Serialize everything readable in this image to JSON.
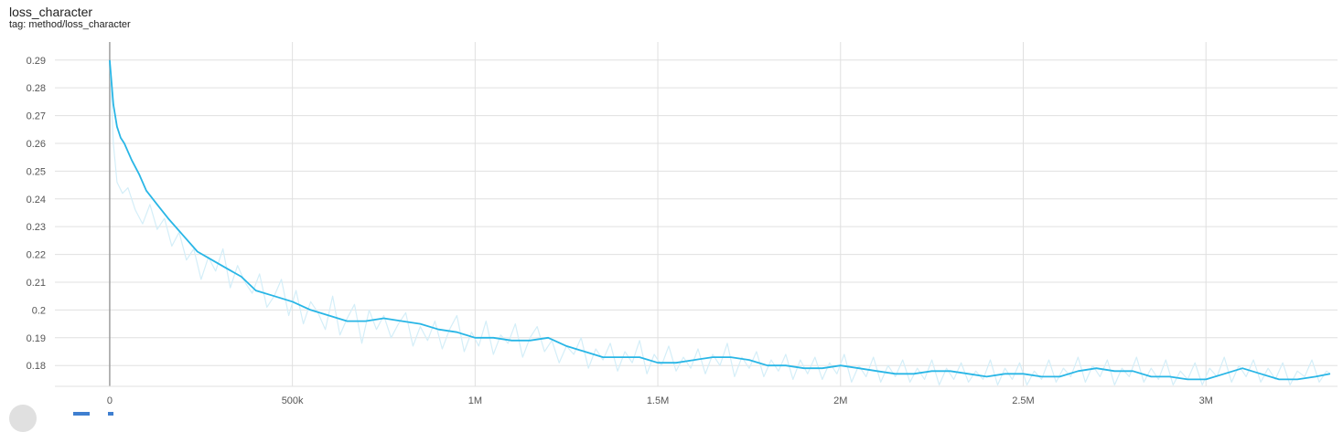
{
  "header": {
    "title": "loss_character",
    "tag": "tag: method/loss_character"
  },
  "colors": {
    "smoothed": "#29b6e6",
    "raw": "#d4eef8",
    "grid": "#e0e0e0",
    "axis": "#9e9e9e"
  },
  "chart_data": {
    "type": "line",
    "title": "loss_character",
    "xlabel": "",
    "ylabel": "",
    "xlim": [
      -150000,
      3360000
    ],
    "ylim": [
      0.1725,
      0.2965
    ],
    "x_ticks": [
      0,
      500000,
      1000000,
      1500000,
      2000000,
      2500000,
      3000000
    ],
    "x_tick_labels": [
      "0",
      "500k",
      "1M",
      "1.5M",
      "2M",
      "2.5M",
      "3M"
    ],
    "y_ticks": [
      0.18,
      0.19,
      0.2,
      0.21,
      0.22,
      0.23,
      0.24,
      0.25,
      0.26,
      0.27,
      0.28,
      0.29
    ],
    "y_tick_labels": [
      "0.18",
      "0.19",
      "0.2",
      "0.21",
      "0.22",
      "0.23",
      "0.24",
      "0.25",
      "0.26",
      "0.27",
      "0.28",
      "0.29"
    ],
    "grid": true,
    "series": [
      {
        "style": "smoothed",
        "x": [
          0,
          10000,
          20000,
          30000,
          40000,
          60000,
          80000,
          100000,
          130000,
          160000,
          200000,
          240000,
          280000,
          320000,
          360000,
          400000,
          450000,
          500000,
          550000,
          600000,
          650000,
          700000,
          750000,
          800000,
          850000,
          900000,
          950000,
          1000000,
          1050000,
          1100000,
          1150000,
          1200000,
          1250000,
          1300000,
          1350000,
          1400000,
          1450000,
          1500000,
          1550000,
          1600000,
          1650000,
          1700000,
          1750000,
          1800000,
          1850000,
          1900000,
          1950000,
          2000000,
          2050000,
          2100000,
          2150000,
          2200000,
          2250000,
          2300000,
          2350000,
          2400000,
          2450000,
          2500000,
          2550000,
          2600000,
          2650000,
          2700000,
          2750000,
          2800000,
          2850000,
          2900000,
          2950000,
          3000000,
          3050000,
          3100000,
          3150000,
          3200000,
          3250000,
          3300000,
          3340000
        ],
        "y": [
          0.29,
          0.274,
          0.266,
          0.262,
          0.26,
          0.254,
          0.249,
          0.243,
          0.238,
          0.233,
          0.227,
          0.221,
          0.218,
          0.215,
          0.212,
          0.207,
          0.205,
          0.203,
          0.2,
          0.198,
          0.196,
          0.196,
          0.197,
          0.196,
          0.195,
          0.193,
          0.192,
          0.19,
          0.19,
          0.189,
          0.189,
          0.19,
          0.187,
          0.185,
          0.183,
          0.183,
          0.183,
          0.181,
          0.181,
          0.182,
          0.183,
          0.183,
          0.182,
          0.18,
          0.18,
          0.179,
          0.179,
          0.18,
          0.179,
          0.178,
          0.177,
          0.177,
          0.178,
          0.178,
          0.177,
          0.176,
          0.177,
          0.177,
          0.176,
          0.176,
          0.178,
          0.179,
          0.178,
          0.178,
          0.176,
          0.176,
          0.175,
          0.175,
          0.177,
          0.179,
          0.177,
          0.175,
          0.175,
          0.176,
          0.177
        ]
      },
      {
        "style": "raw",
        "x": [
          0,
          10000,
          20000,
          35000,
          50000,
          70000,
          90000,
          110000,
          130000,
          150000,
          170000,
          190000,
          210000,
          230000,
          250000,
          270000,
          290000,
          310000,
          330000,
          350000,
          370000,
          390000,
          410000,
          430000,
          450000,
          470000,
          490000,
          510000,
          530000,
          550000,
          570000,
          590000,
          610000,
          630000,
          650000,
          670000,
          690000,
          710000,
          730000,
          750000,
          770000,
          790000,
          810000,
          830000,
          850000,
          870000,
          890000,
          910000,
          930000,
          950000,
          970000,
          990000,
          1010000,
          1030000,
          1050000,
          1070000,
          1090000,
          1110000,
          1130000,
          1150000,
          1170000,
          1190000,
          1210000,
          1230000,
          1250000,
          1270000,
          1290000,
          1310000,
          1330000,
          1350000,
          1370000,
          1390000,
          1410000,
          1430000,
          1450000,
          1470000,
          1490000,
          1510000,
          1530000,
          1550000,
          1570000,
          1590000,
          1610000,
          1630000,
          1650000,
          1670000,
          1690000,
          1710000,
          1730000,
          1750000,
          1770000,
          1790000,
          1810000,
          1830000,
          1850000,
          1870000,
          1890000,
          1910000,
          1930000,
          1950000,
          1970000,
          1990000,
          2010000,
          2030000,
          2050000,
          2070000,
          2090000,
          2110000,
          2130000,
          2150000,
          2170000,
          2190000,
          2210000,
          2230000,
          2250000,
          2270000,
          2290000,
          2310000,
          2330000,
          2350000,
          2370000,
          2390000,
          2410000,
          2430000,
          2450000,
          2470000,
          2490000,
          2510000,
          2530000,
          2550000,
          2570000,
          2590000,
          2610000,
          2630000,
          2650000,
          2670000,
          2690000,
          2710000,
          2730000,
          2750000,
          2770000,
          2790000,
          2810000,
          2830000,
          2850000,
          2870000,
          2890000,
          2910000,
          2930000,
          2950000,
          2970000,
          2990000,
          3010000,
          3030000,
          3050000,
          3070000,
          3090000,
          3110000,
          3130000,
          3150000,
          3170000,
          3190000,
          3210000,
          3230000,
          3250000,
          3270000,
          3290000,
          3310000,
          3330000,
          3340000
        ],
        "y": [
          0.29,
          0.26,
          0.246,
          0.242,
          0.244,
          0.236,
          0.231,
          0.238,
          0.229,
          0.233,
          0.223,
          0.228,
          0.218,
          0.222,
          0.211,
          0.219,
          0.214,
          0.222,
          0.208,
          0.216,
          0.21,
          0.206,
          0.213,
          0.201,
          0.205,
          0.211,
          0.198,
          0.207,
          0.195,
          0.203,
          0.199,
          0.193,
          0.205,
          0.191,
          0.197,
          0.202,
          0.188,
          0.2,
          0.193,
          0.198,
          0.19,
          0.195,
          0.199,
          0.187,
          0.194,
          0.189,
          0.196,
          0.186,
          0.193,
          0.198,
          0.185,
          0.192,
          0.187,
          0.196,
          0.184,
          0.191,
          0.188,
          0.195,
          0.183,
          0.19,
          0.194,
          0.185,
          0.189,
          0.181,
          0.187,
          0.184,
          0.19,
          0.179,
          0.186,
          0.182,
          0.188,
          0.178,
          0.185,
          0.181,
          0.189,
          0.177,
          0.184,
          0.18,
          0.187,
          0.178,
          0.183,
          0.179,
          0.186,
          0.177,
          0.184,
          0.18,
          0.188,
          0.176,
          0.183,
          0.179,
          0.185,
          0.176,
          0.182,
          0.178,
          0.184,
          0.175,
          0.182,
          0.177,
          0.183,
          0.175,
          0.181,
          0.177,
          0.184,
          0.174,
          0.18,
          0.176,
          0.183,
          0.174,
          0.18,
          0.176,
          0.182,
          0.174,
          0.179,
          0.175,
          0.182,
          0.173,
          0.179,
          0.175,
          0.181,
          0.174,
          0.178,
          0.175,
          0.182,
          0.173,
          0.179,
          0.175,
          0.181,
          0.173,
          0.178,
          0.175,
          0.182,
          0.174,
          0.179,
          0.176,
          0.183,
          0.174,
          0.18,
          0.176,
          0.182,
          0.173,
          0.179,
          0.176,
          0.183,
          0.174,
          0.179,
          0.175,
          0.182,
          0.173,
          0.178,
          0.175,
          0.181,
          0.173,
          0.179,
          0.176,
          0.183,
          0.174,
          0.18,
          0.176,
          0.182,
          0.174,
          0.179,
          0.175,
          0.181,
          0.173,
          0.178,
          0.176,
          0.182,
          0.174,
          0.178,
          0.177
        ]
      }
    ]
  }
}
